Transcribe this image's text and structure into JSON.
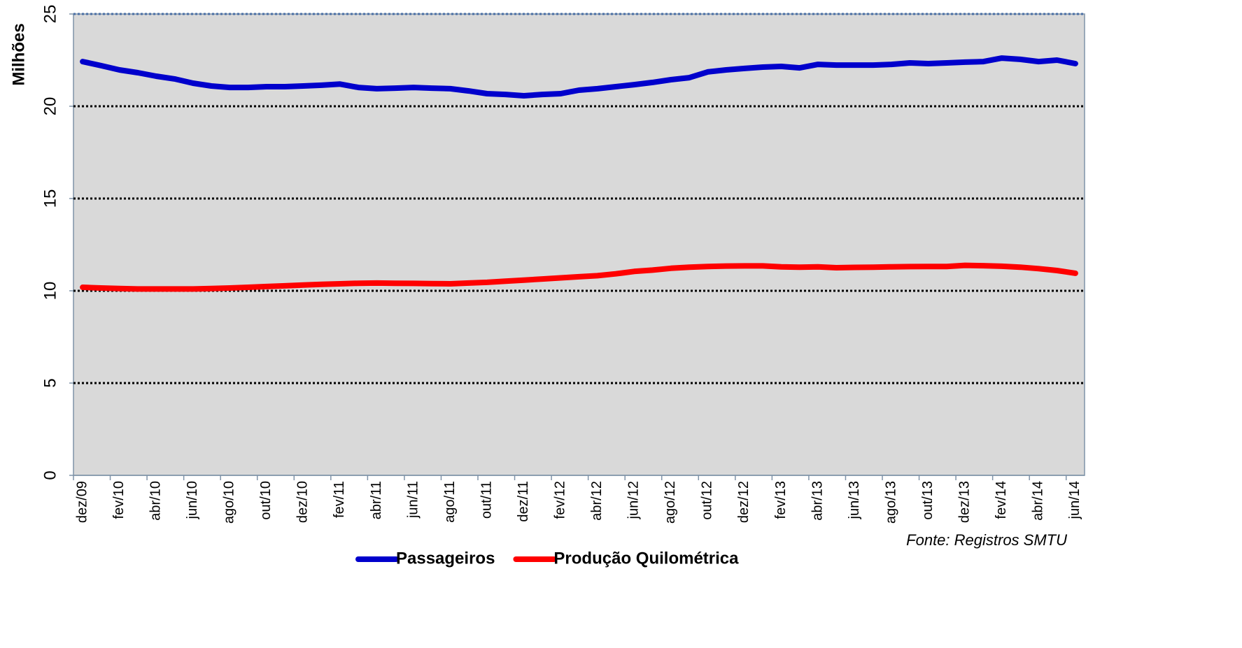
{
  "chart_data": {
    "type": "line",
    "y_label": "Milhões",
    "annotation": "Fonte: Registros SMTU",
    "categories": [
      "dez/09",
      null,
      "fev/10",
      null,
      "abr/10",
      null,
      "jun/10",
      null,
      "ago/10",
      null,
      "out/10",
      null,
      "dez/10",
      null,
      "fev/11",
      null,
      "abr/11",
      null,
      "jun/11",
      null,
      "ago/11",
      null,
      "out/11",
      null,
      "dez/11",
      null,
      "fev/12",
      null,
      "abr/12",
      null,
      "jun/12",
      null,
      "ago/12",
      null,
      "out/12",
      null,
      "dez/12",
      null,
      "fev/13",
      null,
      "abr/13",
      null,
      "jun/13",
      null,
      "ago/13",
      null,
      "out/13",
      null,
      "dez/13",
      null,
      "fev/14",
      null,
      "abr/14",
      null,
      "jun/14"
    ],
    "series": [
      {
        "name": "Passageiros",
        "color": "#0000cc",
        "values": [
          22.42,
          22.2,
          21.97,
          21.82,
          21.63,
          21.48,
          21.25,
          21.1,
          21.02,
          21.02,
          21.06,
          21.06,
          21.1,
          21.14,
          21.2,
          21.02,
          20.95,
          20.98,
          21.02,
          20.98,
          20.95,
          20.83,
          20.68,
          20.64,
          20.57,
          20.64,
          20.68,
          20.87,
          20.95,
          21.06,
          21.17,
          21.29,
          21.44,
          21.55,
          21.86,
          21.97,
          22.05,
          22.12,
          22.16,
          22.08,
          22.27,
          22.23,
          22.23,
          22.23,
          22.27,
          22.35,
          22.31,
          22.35,
          22.39,
          22.42,
          22.61,
          22.54,
          22.42,
          22.5,
          22.31
        ]
      },
      {
        "name": "Produção Quilométrica",
        "color": "#ff0000",
        "values": [
          10.19,
          10.15,
          10.12,
          10.1,
          10.1,
          10.1,
          10.1,
          10.12,
          10.15,
          10.19,
          10.23,
          10.27,
          10.31,
          10.35,
          10.38,
          10.41,
          10.42,
          10.41,
          10.4,
          10.39,
          10.38,
          10.42,
          10.46,
          10.52,
          10.58,
          10.64,
          10.7,
          10.76,
          10.82,
          10.92,
          11.05,
          11.12,
          11.22,
          11.28,
          11.32,
          11.34,
          11.35,
          11.35,
          11.3,
          11.28,
          11.3,
          11.25,
          11.27,
          11.28,
          11.3,
          11.31,
          11.32,
          11.32,
          11.38,
          11.36,
          11.33,
          11.28,
          11.2,
          11.1,
          10.95
        ]
      }
    ],
    "ylim": [
      0,
      25
    ],
    "yticks": [
      0,
      5,
      10,
      15,
      20,
      25
    ],
    "grid": true
  }
}
